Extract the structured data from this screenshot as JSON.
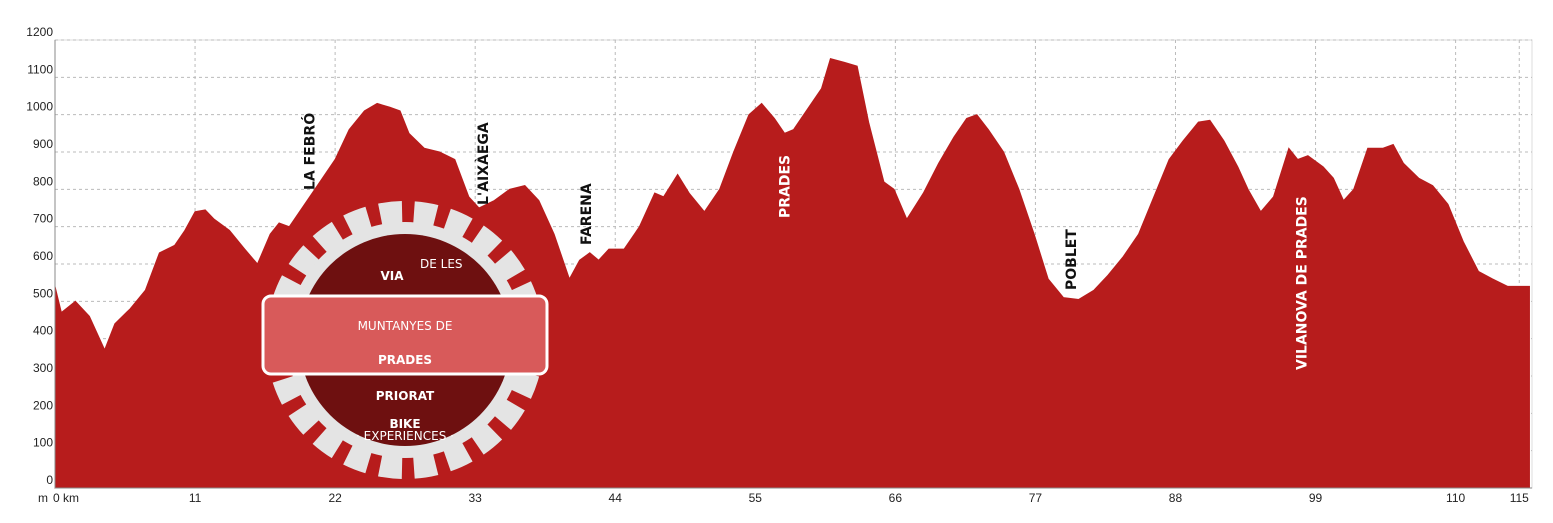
{
  "chart_data": {
    "type": "area",
    "y_unit": "m",
    "color": "#b71c1c",
    "grid": true,
    "xlim": [
      0,
      116
    ],
    "ylim": [
      0,
      1200
    ],
    "xticks": [
      {
        "value": 0,
        "label": "0 km"
      },
      11,
      22,
      33,
      44,
      55,
      66,
      77,
      88,
      99,
      110,
      115
    ],
    "yticks": [
      0,
      100,
      200,
      300,
      400,
      500,
      600,
      700,
      800,
      900,
      1000,
      1100,
      1200
    ],
    "x": [
      0,
      0.5,
      1.6,
      2.7,
      3.9,
      4.7,
      5.9,
      7.1,
      8.2,
      9.4,
      10.2,
      11,
      11.8,
      12.5,
      13.7,
      14.9,
      15.9,
      16.9,
      17.6,
      18.4,
      19.6,
      20.8,
      22,
      23.1,
      24.3,
      25.3,
      26.3,
      27.1,
      27.8,
      29,
      30.2,
      31.4,
      32.5,
      33.3,
      34.5,
      35.7,
      36.9,
      38,
      39.2,
      40.4,
      41.2,
      42,
      42.7,
      43.5,
      44.7,
      45.9,
      47.1,
      47.8,
      48.9,
      49.8,
      51,
      52.2,
      53.3,
      54.5,
      55.5,
      56.5,
      57.3,
      58,
      59.2,
      60.2,
      60.9,
      62,
      63,
      63.9,
      65.1,
      65.9,
      66.9,
      68.2,
      69.4,
      70.6,
      71.6,
      72.4,
      73.3,
      74.5,
      75.7,
      76.9,
      78,
      79.2,
      80.4,
      81.6,
      82.7,
      83.9,
      85.1,
      86.3,
      87.5,
      88.6,
      89.8,
      90.7,
      91.8,
      92.9,
      93.7,
      94.7,
      95.7,
      96.9,
      97.6,
      98.4,
      99.6,
      100.4,
      101.2,
      102,
      103.1,
      104.3,
      105.1,
      105.9,
      107.1,
      108.2,
      109.4,
      110.6,
      111.8,
      112.9,
      114.1,
      115.8
    ],
    "values": [
      540,
      470,
      500,
      460,
      370,
      440,
      480,
      530,
      630,
      650,
      690,
      740,
      745,
      720,
      690,
      640,
      600,
      680,
      710,
      700,
      760,
      820,
      880,
      960,
      1010,
      1030,
      1020,
      1010,
      950,
      910,
      900,
      880,
      780,
      750,
      770,
      800,
      810,
      770,
      680,
      560,
      610,
      630,
      610,
      640,
      640,
      700,
      790,
      780,
      840,
      790,
      740,
      800,
      900,
      1000,
      1030,
      990,
      950,
      960,
      1020,
      1070,
      1150,
      1140,
      1130,
      980,
      820,
      800,
      720,
      790,
      870,
      940,
      990,
      1000,
      960,
      900,
      800,
      680,
      560,
      510,
      505,
      530,
      570,
      620,
      680,
      780,
      880,
      930,
      980,
      985,
      930,
      860,
      800,
      740,
      780,
      910,
      880,
      890,
      860,
      830,
      770,
      800,
      910,
      910,
      920,
      870,
      830,
      810,
      760,
      660,
      580,
      560,
      540,
      540
    ],
    "annotations": [
      {
        "text": "LA FEBRÓ",
        "x": 20
      },
      {
        "text": "L'AIXÀEGA",
        "x": 33.6
      },
      {
        "text": "FARENA",
        "x": 41.7
      },
      {
        "text": "PRADES",
        "x": 57.3
      },
      {
        "text": "POBLET",
        "x": 79.8
      },
      {
        "text": "VILANOVA DE PRADES",
        "x": 97.9
      }
    ],
    "logo": {
      "via": "VIA",
      "de_les": "DE LES",
      "line1": "MUNTANYES DE",
      "line2": "PRADES",
      "brand1": "PRIORAT",
      "brand2": "BIKE",
      "brand3": "· EXPERIENCES ·"
    }
  }
}
